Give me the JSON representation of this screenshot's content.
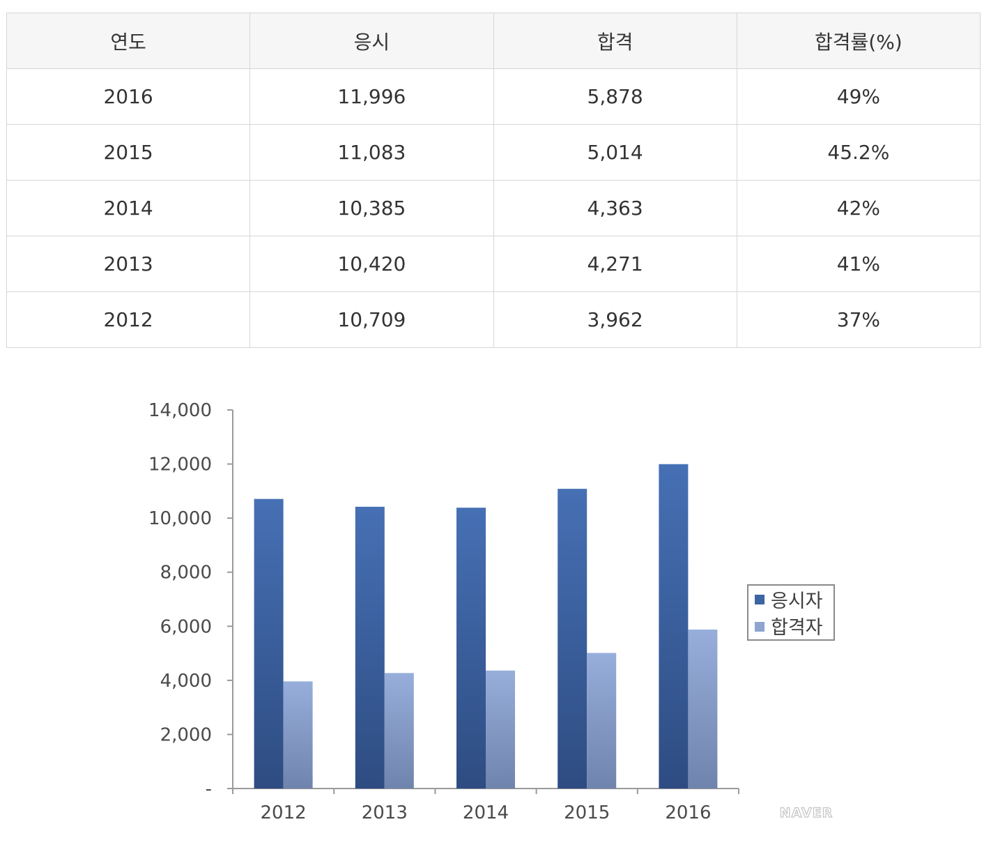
{
  "table": {
    "headers": [
      "연도",
      "응시",
      "합격",
      "합격률(%)"
    ],
    "rows": [
      [
        "2016",
        "11,996",
        "5,878",
        "49%"
      ],
      [
        "2015",
        "11,083",
        "5,014",
        "45.2%"
      ],
      [
        "2014",
        "10,385",
        "4,363",
        "42%"
      ],
      [
        "2013",
        "10,420",
        "4,271",
        "41%"
      ],
      [
        "2012",
        "10,709",
        "3,962",
        "37%"
      ]
    ]
  },
  "chart_data": {
    "type": "bar",
    "categories": [
      "2012",
      "2013",
      "2014",
      "2015",
      "2016"
    ],
    "series": [
      {
        "name": "응시자",
        "values": [
          10709,
          10420,
          10385,
          11083,
          11996
        ],
        "color": "#3d64a3"
      },
      {
        "name": "합격자",
        "values": [
          3962,
          4271,
          4363,
          5014,
          5878
        ],
        "color": "#8fa5cf"
      }
    ],
    "ylim": [
      0,
      14000
    ],
    "yticks": [
      0,
      2000,
      4000,
      6000,
      8000,
      10000,
      12000,
      14000
    ],
    "ytick_labels": [
      "-",
      "2,000",
      "4,000",
      "6,000",
      "8,000",
      "10,000",
      "12,000",
      "14,000"
    ],
    "legend_position": "right",
    "grid": false
  },
  "watermark": "NAVER"
}
